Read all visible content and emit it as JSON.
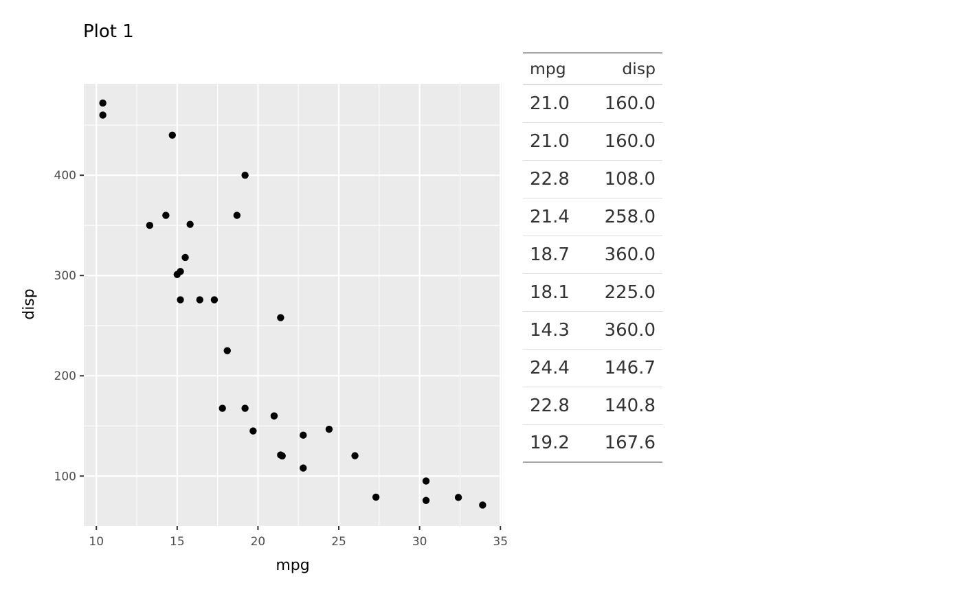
{
  "chart_data": {
    "type": "scatter",
    "title": "Plot 1",
    "xlabel": "mpg",
    "ylabel": "disp",
    "xlim": [
      9.225,
      35.075
    ],
    "ylim": [
      50.2,
      491.2
    ],
    "x_ticks": [
      10,
      15,
      20,
      25,
      30,
      35
    ],
    "y_ticks": [
      100,
      200,
      300,
      400
    ],
    "grid": true,
    "points": [
      {
        "x": 21.0,
        "y": 160.0
      },
      {
        "x": 21.0,
        "y": 160.0
      },
      {
        "x": 22.8,
        "y": 108.0
      },
      {
        "x": 21.4,
        "y": 258.0
      },
      {
        "x": 18.7,
        "y": 360.0
      },
      {
        "x": 18.1,
        "y": 225.0
      },
      {
        "x": 14.3,
        "y": 360.0
      },
      {
        "x": 24.4,
        "y": 146.7
      },
      {
        "x": 22.8,
        "y": 140.8
      },
      {
        "x": 19.2,
        "y": 167.6
      },
      {
        "x": 17.8,
        "y": 167.6
      },
      {
        "x": 16.4,
        "y": 275.8
      },
      {
        "x": 17.3,
        "y": 275.8
      },
      {
        "x": 15.2,
        "y": 275.8
      },
      {
        "x": 10.4,
        "y": 472.0
      },
      {
        "x": 10.4,
        "y": 460.0
      },
      {
        "x": 14.7,
        "y": 440.0
      },
      {
        "x": 32.4,
        "y": 78.7
      },
      {
        "x": 30.4,
        "y": 75.7
      },
      {
        "x": 33.9,
        "y": 71.1
      },
      {
        "x": 21.5,
        "y": 120.1
      },
      {
        "x": 15.5,
        "y": 318.0
      },
      {
        "x": 15.2,
        "y": 304.0
      },
      {
        "x": 13.3,
        "y": 350.0
      },
      {
        "x": 19.2,
        "y": 400.0
      },
      {
        "x": 27.3,
        "y": 79.0
      },
      {
        "x": 26.0,
        "y": 120.3
      },
      {
        "x": 30.4,
        "y": 95.1
      },
      {
        "x": 15.8,
        "y": 351.0
      },
      {
        "x": 19.7,
        "y": 145.0
      },
      {
        "x": 15.0,
        "y": 301.0
      },
      {
        "x": 21.4,
        "y": 121.0
      }
    ]
  },
  "table": {
    "headers": [
      "mpg",
      "disp"
    ],
    "rows": [
      [
        "21.0",
        "160.0"
      ],
      [
        "21.0",
        "160.0"
      ],
      [
        "22.8",
        "108.0"
      ],
      [
        "21.4",
        "258.0"
      ],
      [
        "18.7",
        "360.0"
      ],
      [
        "18.1",
        "225.0"
      ],
      [
        "14.3",
        "360.0"
      ],
      [
        "24.4",
        "146.7"
      ],
      [
        "22.8",
        "140.8"
      ],
      [
        "19.2",
        "167.6"
      ]
    ]
  },
  "colors": {
    "panel_background": "#ebebeb",
    "grid": "#ffffff",
    "point": "#000000",
    "tick_mark": "#333333",
    "tick_label": "#4d4d4d"
  }
}
